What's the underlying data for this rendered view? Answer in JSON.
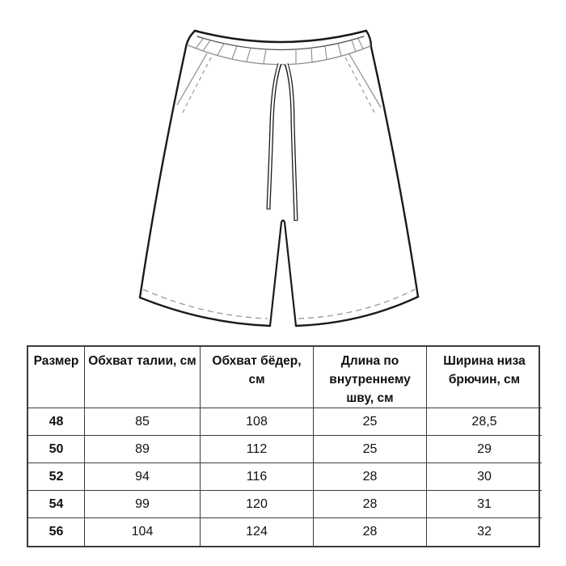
{
  "page": {
    "background_color": "#ffffff",
    "drawing_line_color": "#1a1a1a",
    "construction_line_color": "#8c8c8c",
    "stitch_dash_color": "#999999",
    "table_border_color": "#3c3c3c"
  },
  "drawing": {
    "name": "shorts-technical-flat-sketch",
    "features": [
      "waistband",
      "rib-ticks",
      "drawstring",
      "left-pocket",
      "right-pocket",
      "hem-stitching",
      "center-split"
    ]
  },
  "size_table": {
    "headers": [
      "Размер",
      "Обхват талии, см",
      "Обхват бёдер, см",
      "Длина по внутреннему шву, см",
      "Ширина низа брючин, см"
    ],
    "rows": [
      [
        "48",
        "85",
        "108",
        "25",
        "28,5"
      ],
      [
        "50",
        "89",
        "112",
        "25",
        "29"
      ],
      [
        "52",
        "94",
        "116",
        "28",
        "30"
      ],
      [
        "54",
        "99",
        "120",
        "28",
        "31"
      ],
      [
        "56",
        "104",
        "124",
        "28",
        "32"
      ]
    ]
  },
  "chart_data": {
    "type": "table",
    "title": "",
    "columns": [
      "Размер",
      "Обхват талии, см",
      "Обхват бёдер, см",
      "Длина по внутреннему шву, см",
      "Ширина низа брючин, см"
    ],
    "rows": [
      [
        48,
        85,
        108,
        25,
        28.5
      ],
      [
        50,
        89,
        112,
        25,
        29
      ],
      [
        52,
        94,
        116,
        28,
        30
      ],
      [
        54,
        99,
        120,
        28,
        31
      ],
      [
        56,
        104,
        124,
        28,
        32
      ]
    ]
  }
}
